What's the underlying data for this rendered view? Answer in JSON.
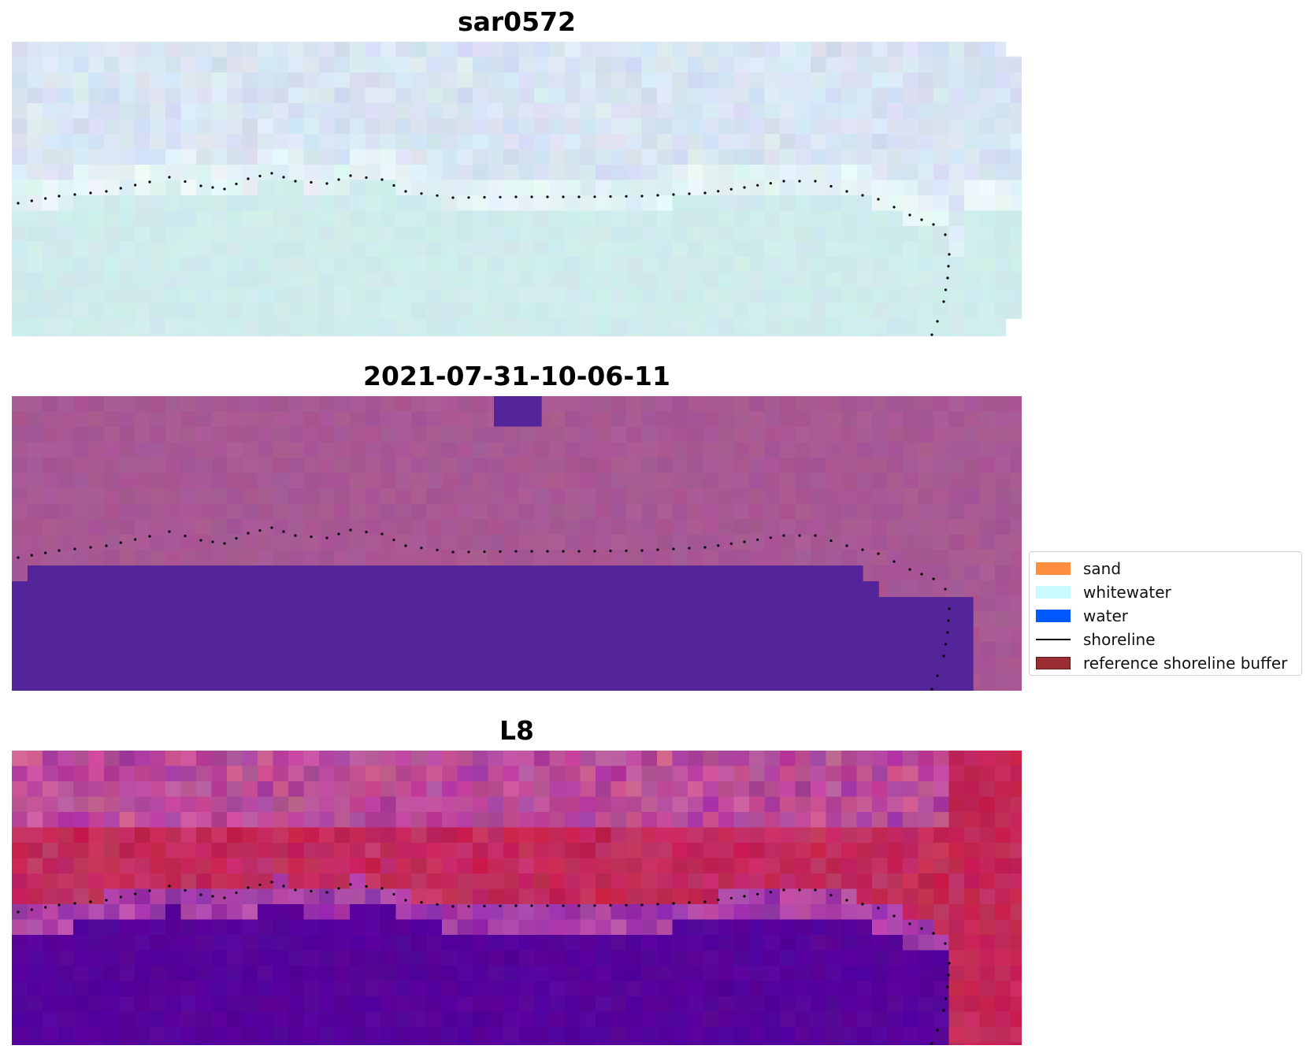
{
  "panels": [
    {
      "title": "sar0572",
      "style": "sar"
    },
    {
      "title": "2021-07-31-10-06-11",
      "style": "class"
    },
    {
      "title": "L8",
      "style": "ndwi"
    }
  ],
  "legend": {
    "items": [
      {
        "label": "sand",
        "color": "#ff8f40",
        "kind": "patch"
      },
      {
        "label": "whitewater",
        "color": "#c8fcff",
        "kind": "patch"
      },
      {
        "label": "water",
        "color": "#0059ff",
        "kind": "patch"
      },
      {
        "label": "shoreline",
        "color": "#000000",
        "kind": "line"
      },
      {
        "label": "reference shoreline buffer",
        "color": "#9a2e32",
        "kind": "patch",
        "edge": "#5a1a1c"
      }
    ]
  },
  "colors": {
    "sar_top": "#d2dff0",
    "sar_bottom": "#cfecec",
    "class_land": "#a75893",
    "class_water": "#53249a",
    "ndwi_land": "#c2204e",
    "ndwi_water": "#56029a",
    "shoreline": "#000000"
  }
}
